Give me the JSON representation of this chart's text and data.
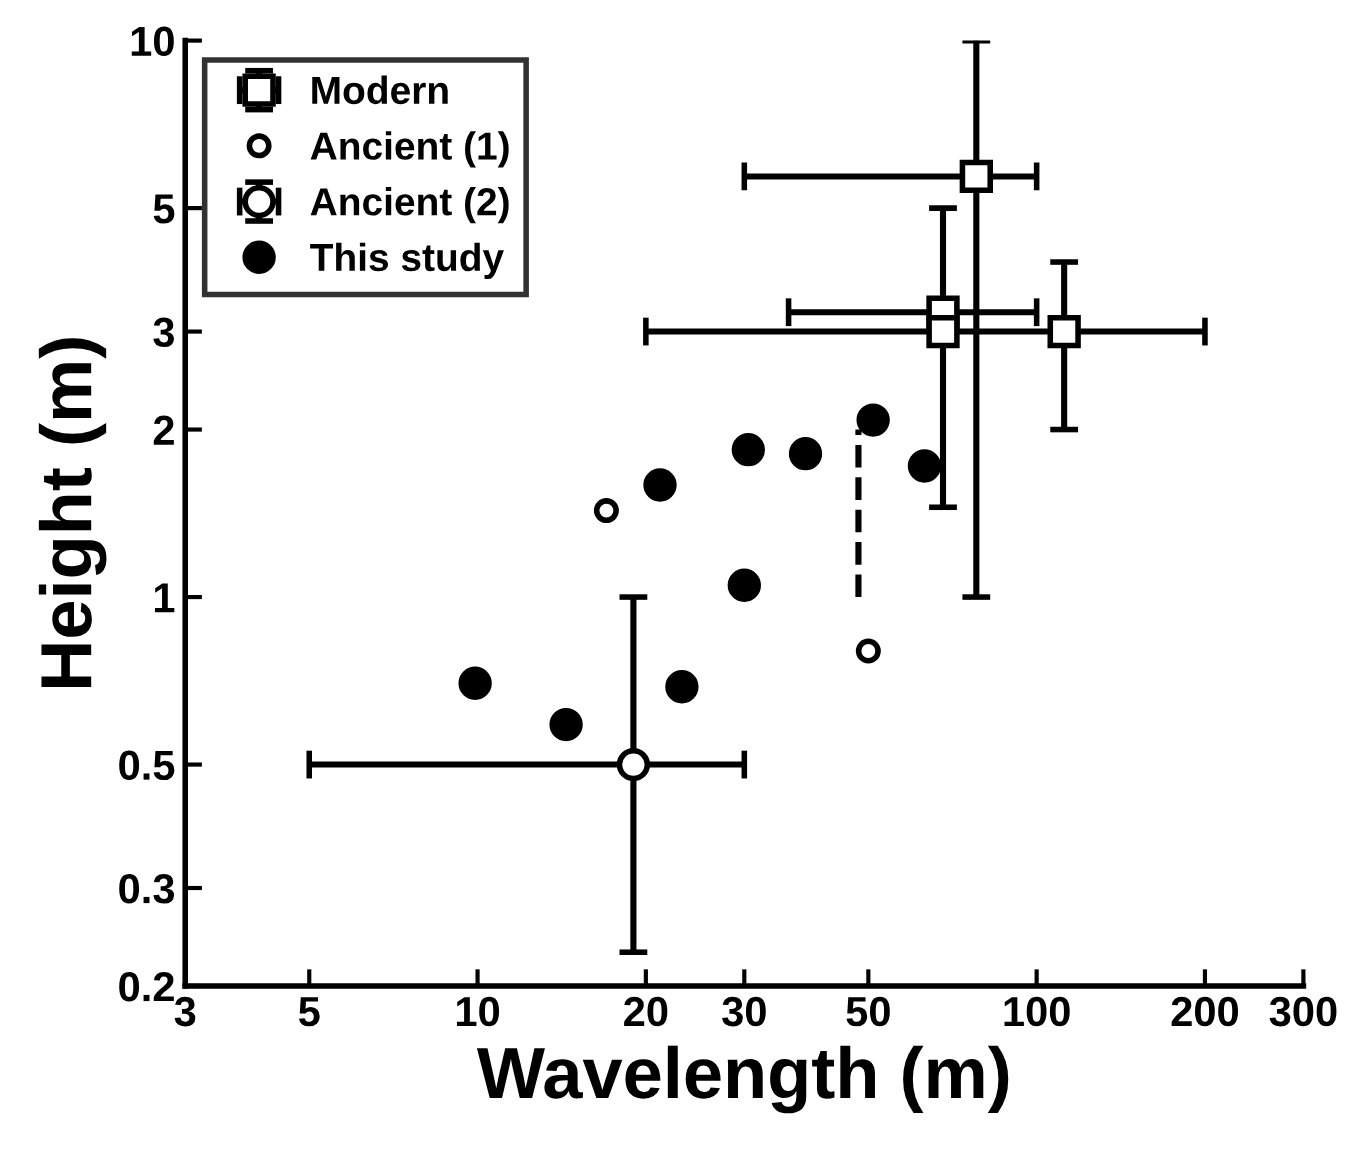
{
  "chart_data": {
    "type": "scatter",
    "xlabel": "Wavelength (m)",
    "ylabel": "Height (m)",
    "log": "xy",
    "xlim": [
      3,
      300
    ],
    "ylim": [
      0.2,
      10
    ],
    "xticks": [
      3,
      5,
      10,
      20,
      30,
      50,
      100,
      200,
      300
    ],
    "yticks": [
      0.2,
      0.3,
      0.5,
      1,
      2,
      3,
      5,
      10
    ],
    "grid": false,
    "legend": "top left",
    "series": [
      {
        "name": "Modern",
        "marker": "square",
        "color": "#ffffff",
        "x": [
          78,
          68,
          68,
          112
        ],
        "values": [
          5.7,
          3.25,
          3.0,
          3.0
        ],
        "errors": [
          [
            1.0,
            10
          ],
          [
            1.45,
            5.0
          ],
          null,
          [
            2.0,
            4.0
          ]
        ],
        "xerrors": [
          [
            30,
            100
          ],
          [
            36,
            100
          ],
          null,
          [
            20,
            200
          ]
        ]
      },
      {
        "name": "Ancient (1)",
        "marker": "circle",
        "color": "#ffffff",
        "x": [
          17,
          50
        ],
        "values": [
          1.43,
          0.8
        ]
      },
      {
        "type": "line",
        "marker": "none",
        "line_style": "dashed",
        "color": "#000000",
        "x": [
          48,
          48
        ],
        "values": [
          1.0,
          2.0
        ]
      },
      {
        "name": "Ancient (2)",
        "marker": "circle",
        "color": "#ffffff",
        "x": [
          19
        ],
        "values": [
          0.5
        ],
        "errors": [
          [
            0.23,
            1.0
          ]
        ],
        "xerrors": [
          [
            5,
            30
          ]
        ]
      },
      {
        "name": "This study",
        "marker": "circle",
        "color": "#000000",
        "x": [
          9.9,
          14.4,
          21.2,
          23.2,
          30,
          30.5,
          38.6,
          51,
          63
        ],
        "values": [
          0.7,
          0.59,
          1.59,
          0.69,
          1.05,
          1.84,
          1.81,
          2.08,
          1.72
        ]
      }
    ]
  }
}
